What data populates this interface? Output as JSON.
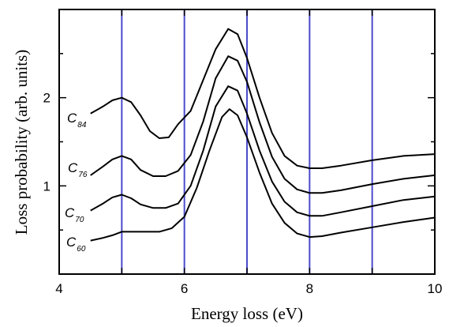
{
  "chart_data": {
    "type": "line",
    "title": "",
    "xlabel": "Energy loss (eV)",
    "ylabel": "Loss probability (arb. units)",
    "xlim": [
      4,
      10
    ],
    "ylim": [
      0,
      3.0
    ],
    "x_ticks": [
      4,
      6,
      8,
      10
    ],
    "y_ticks": [
      1,
      2
    ],
    "x_tick_labels": [
      "4",
      "6",
      "8",
      "10"
    ],
    "y_tick_labels": [
      "1",
      "2"
    ],
    "vertical_gridlines_x": [
      4,
      5,
      6,
      7,
      8,
      9,
      10
    ],
    "gridline_color": "#4b4bcc",
    "series_color": "#000000",
    "series": [
      {
        "name": "C84",
        "label_main": "C",
        "label_sub": "84",
        "points": [
          [
            4.5,
            1.82
          ],
          [
            4.7,
            1.9
          ],
          [
            4.85,
            1.97
          ],
          [
            5.0,
            2.0
          ],
          [
            5.15,
            1.95
          ],
          [
            5.3,
            1.8
          ],
          [
            5.45,
            1.62
          ],
          [
            5.6,
            1.54
          ],
          [
            5.75,
            1.55
          ],
          [
            5.9,
            1.7
          ],
          [
            6.1,
            1.85
          ],
          [
            6.3,
            2.2
          ],
          [
            6.5,
            2.55
          ],
          [
            6.7,
            2.78
          ],
          [
            6.85,
            2.72
          ],
          [
            7.0,
            2.45
          ],
          [
            7.2,
            2.0
          ],
          [
            7.4,
            1.6
          ],
          [
            7.6,
            1.34
          ],
          [
            7.8,
            1.23
          ],
          [
            8.0,
            1.2
          ],
          [
            8.2,
            1.2
          ],
          [
            8.5,
            1.23
          ],
          [
            9.0,
            1.29
          ],
          [
            9.5,
            1.34
          ],
          [
            10.0,
            1.36
          ]
        ]
      },
      {
        "name": "C76",
        "label_main": "C",
        "label_sub": "76",
        "points": [
          [
            4.5,
            1.12
          ],
          [
            4.7,
            1.22
          ],
          [
            4.85,
            1.3
          ],
          [
            5.0,
            1.34
          ],
          [
            5.15,
            1.3
          ],
          [
            5.3,
            1.18
          ],
          [
            5.5,
            1.11
          ],
          [
            5.7,
            1.11
          ],
          [
            5.9,
            1.17
          ],
          [
            6.1,
            1.35
          ],
          [
            6.3,
            1.73
          ],
          [
            6.5,
            2.22
          ],
          [
            6.7,
            2.47
          ],
          [
            6.85,
            2.42
          ],
          [
            7.0,
            2.18
          ],
          [
            7.2,
            1.72
          ],
          [
            7.4,
            1.33
          ],
          [
            7.6,
            1.08
          ],
          [
            7.8,
            0.96
          ],
          [
            8.0,
            0.92
          ],
          [
            8.2,
            0.92
          ],
          [
            8.5,
            0.95
          ],
          [
            9.0,
            1.02
          ],
          [
            9.5,
            1.08
          ],
          [
            10.0,
            1.12
          ]
        ]
      },
      {
        "name": "C70",
        "label_main": "C",
        "label_sub": "70",
        "points": [
          [
            4.5,
            0.72
          ],
          [
            4.7,
            0.8
          ],
          [
            4.85,
            0.87
          ],
          [
            5.0,
            0.9
          ],
          [
            5.15,
            0.86
          ],
          [
            5.3,
            0.79
          ],
          [
            5.5,
            0.75
          ],
          [
            5.7,
            0.75
          ],
          [
            5.9,
            0.8
          ],
          [
            6.1,
            1.0
          ],
          [
            6.3,
            1.4
          ],
          [
            6.5,
            1.9
          ],
          [
            6.7,
            2.13
          ],
          [
            6.85,
            2.08
          ],
          [
            7.0,
            1.82
          ],
          [
            7.2,
            1.4
          ],
          [
            7.4,
            1.05
          ],
          [
            7.6,
            0.82
          ],
          [
            7.8,
            0.7
          ],
          [
            8.0,
            0.66
          ],
          [
            8.2,
            0.66
          ],
          [
            8.5,
            0.7
          ],
          [
            9.0,
            0.77
          ],
          [
            9.5,
            0.84
          ],
          [
            10.0,
            0.88
          ]
        ]
      },
      {
        "name": "C60",
        "label_main": "C",
        "label_sub": "60",
        "points": [
          [
            4.5,
            0.38
          ],
          [
            4.7,
            0.41
          ],
          [
            4.85,
            0.44
          ],
          [
            5.0,
            0.48
          ],
          [
            5.3,
            0.48
          ],
          [
            5.6,
            0.48
          ],
          [
            5.8,
            0.52
          ],
          [
            6.0,
            0.65
          ],
          [
            6.2,
            0.98
          ],
          [
            6.4,
            1.4
          ],
          [
            6.6,
            1.78
          ],
          [
            6.72,
            1.87
          ],
          [
            6.85,
            1.8
          ],
          [
            7.0,
            1.55
          ],
          [
            7.2,
            1.15
          ],
          [
            7.4,
            0.8
          ],
          [
            7.6,
            0.58
          ],
          [
            7.8,
            0.46
          ],
          [
            8.0,
            0.42
          ],
          [
            8.2,
            0.43
          ],
          [
            8.5,
            0.47
          ],
          [
            9.0,
            0.53
          ],
          [
            9.5,
            0.59
          ],
          [
            10.0,
            0.64
          ]
        ]
      }
    ]
  }
}
